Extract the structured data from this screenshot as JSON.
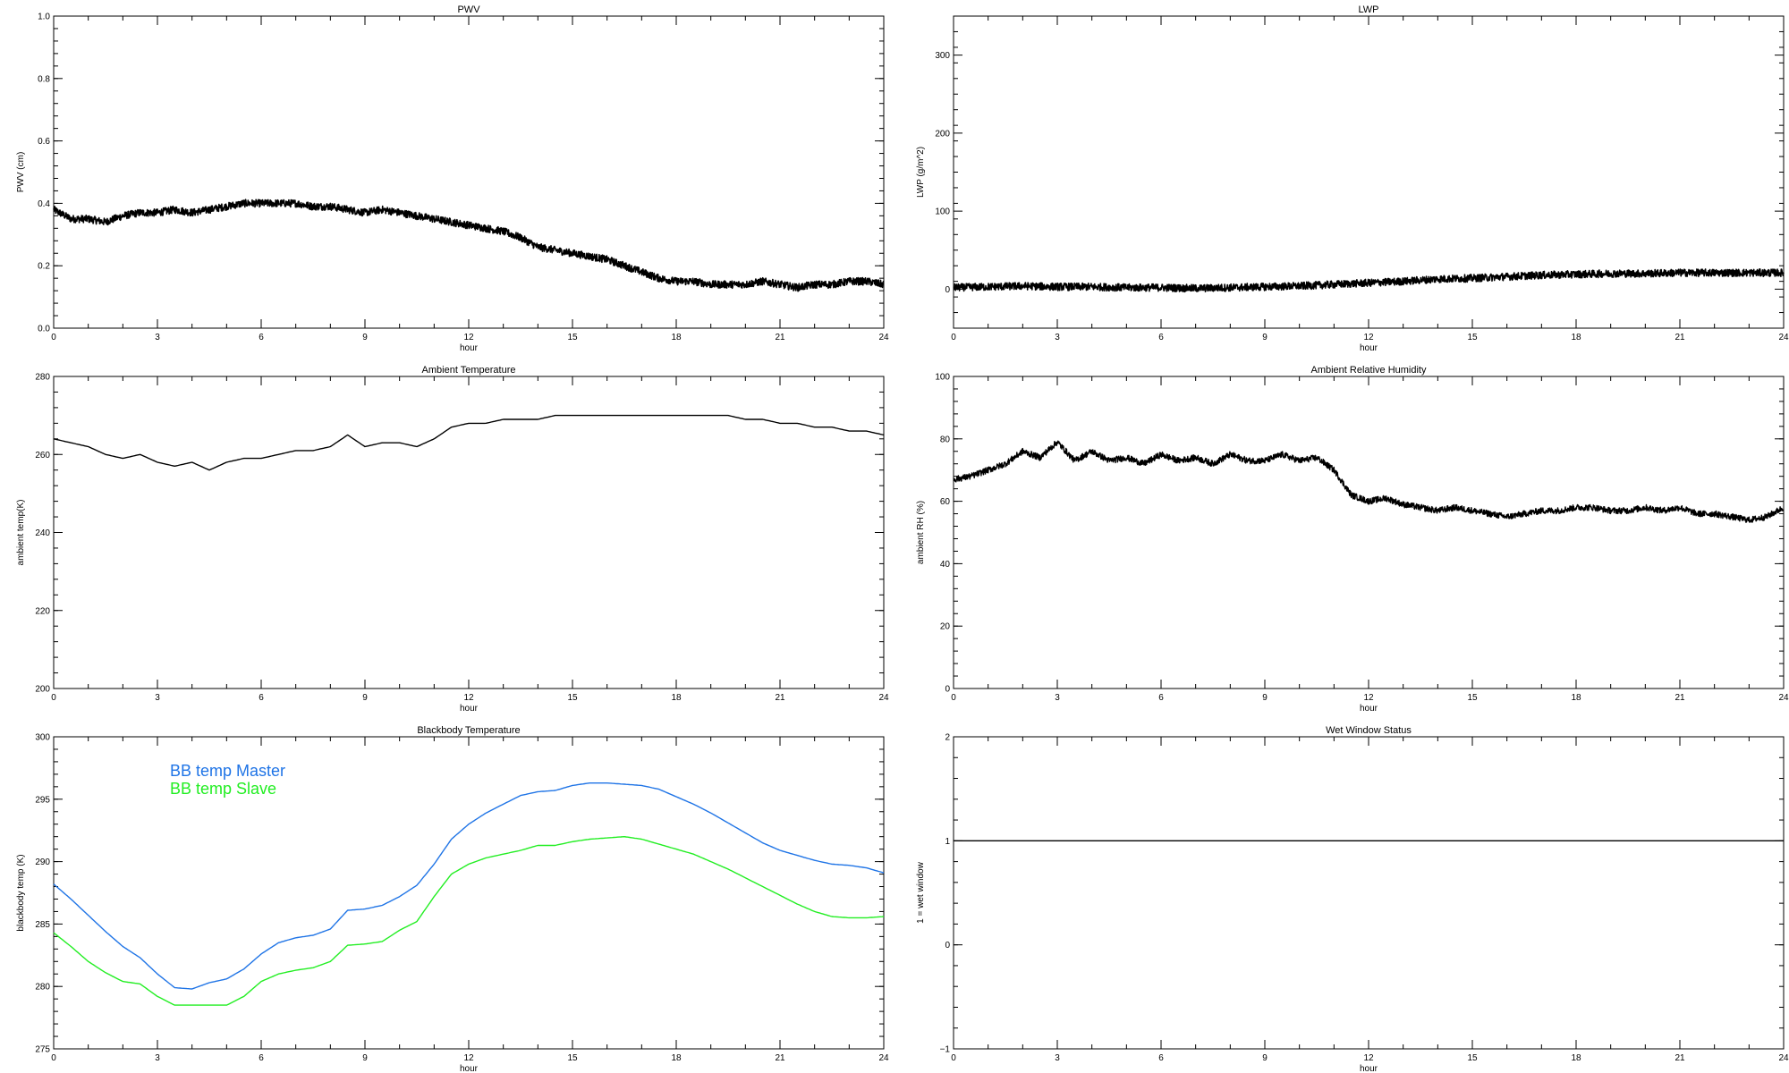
{
  "figure": {
    "background": "#ffffff",
    "axis_color": "#000000"
  },
  "chart_data": [
    {
      "id": "pwv",
      "type": "line",
      "title": "PWV",
      "xlabel": "hour",
      "ylabel": "PWV (cm)",
      "xlim": [
        0,
        24
      ],
      "ylim": [
        0.0,
        1.0
      ],
      "xticks": [
        "0",
        "3",
        "6",
        "9",
        "12",
        "15",
        "18",
        "21",
        "24"
      ],
      "yticks": [
        "0.0",
        "0.2",
        "0.4",
        "0.6",
        "0.8",
        "1.0"
      ],
      "grid": false,
      "series": [
        {
          "color": "#000000",
          "style": "noisy",
          "x": [
            0,
            0.5,
            1,
            1.5,
            2,
            2.5,
            3,
            3.5,
            4,
            4.5,
            5,
            5.5,
            6,
            6.5,
            7,
            7.5,
            8,
            8.5,
            9,
            9.5,
            10,
            10.5,
            11,
            11.5,
            12,
            12.5,
            13,
            13.5,
            14,
            14.5,
            15,
            15.5,
            16,
            16.5,
            17,
            17.5,
            18,
            18.5,
            19,
            19.5,
            20,
            20.5,
            21,
            21.5,
            22,
            22.5,
            23,
            23.5,
            24
          ],
          "y": [
            0.38,
            0.35,
            0.35,
            0.34,
            0.36,
            0.37,
            0.37,
            0.38,
            0.37,
            0.38,
            0.39,
            0.4,
            0.4,
            0.4,
            0.4,
            0.39,
            0.39,
            0.38,
            0.37,
            0.38,
            0.37,
            0.36,
            0.35,
            0.34,
            0.33,
            0.32,
            0.31,
            0.29,
            0.26,
            0.25,
            0.24,
            0.23,
            0.22,
            0.2,
            0.18,
            0.16,
            0.15,
            0.15,
            0.14,
            0.14,
            0.14,
            0.15,
            0.14,
            0.13,
            0.14,
            0.14,
            0.15,
            0.15,
            0.14
          ]
        }
      ]
    },
    {
      "id": "lwp",
      "type": "line",
      "title": "LWP",
      "xlabel": "hour",
      "ylabel": "LWP (g/m^2)",
      "xlim": [
        0,
        24
      ],
      "ylim": [
        -50,
        350
      ],
      "xticks": [
        "0",
        "3",
        "6",
        "9",
        "12",
        "15",
        "18",
        "21",
        "24"
      ],
      "yticks": [
        "0",
        "100",
        "200",
        "300"
      ],
      "grid": false,
      "series": [
        {
          "color": "#000000",
          "style": "noisy",
          "x": [
            0,
            1,
            2,
            3,
            4,
            5,
            6,
            7,
            8,
            9,
            10,
            11,
            12,
            13,
            14,
            15,
            16,
            17,
            18,
            19,
            20,
            21,
            22,
            23,
            24
          ],
          "y": [
            2,
            3,
            4,
            3,
            3,
            2,
            2,
            1,
            2,
            3,
            4,
            6,
            8,
            10,
            13,
            14,
            16,
            18,
            19,
            20,
            20,
            21,
            21,
            21,
            21
          ]
        }
      ]
    },
    {
      "id": "ambient-temp",
      "type": "line",
      "title": "Ambient Temperature",
      "xlabel": "hour",
      "ylabel": "ambient temp(K)",
      "xlim": [
        0,
        24
      ],
      "ylim": [
        200,
        280
      ],
      "xticks": [
        "0",
        "3",
        "6",
        "9",
        "12",
        "15",
        "18",
        "21",
        "24"
      ],
      "yticks": [
        "200",
        "220",
        "240",
        "260",
        "280"
      ],
      "grid": false,
      "series": [
        {
          "color": "#000000",
          "style": "smooth",
          "x": [
            0,
            0.5,
            1,
            1.5,
            2,
            2.5,
            3,
            3.5,
            4,
            4.5,
            5,
            5.5,
            6,
            6.5,
            7,
            7.5,
            8,
            8.5,
            9,
            9.5,
            10,
            10.5,
            11,
            11.5,
            12,
            12.5,
            13,
            13.5,
            14,
            14.5,
            15,
            15.5,
            16,
            16.5,
            17,
            17.5,
            18,
            18.5,
            19,
            19.5,
            20,
            20.5,
            21,
            21.5,
            22,
            22.5,
            23,
            23.5,
            24
          ],
          "y": [
            264,
            263,
            262,
            260,
            259,
            260,
            258,
            257,
            258,
            256,
            258,
            259,
            259,
            260,
            261,
            261,
            262,
            265,
            262,
            263,
            263,
            262,
            264,
            267,
            268,
            268,
            269,
            269,
            269,
            270,
            270,
            270,
            270,
            270,
            270,
            270,
            270,
            270,
            270,
            270,
            269,
            269,
            268,
            268,
            267,
            267,
            266,
            266,
            265
          ]
        }
      ]
    },
    {
      "id": "ambient-rh",
      "type": "line",
      "title": "Ambient Relative Humidity",
      "xlabel": "hour",
      "ylabel": "ambient RH (%)",
      "xlim": [
        0,
        24
      ],
      "ylim": [
        0,
        100
      ],
      "xticks": [
        "0",
        "3",
        "6",
        "9",
        "12",
        "15",
        "18",
        "21",
        "24"
      ],
      "yticks": [
        "0",
        "20",
        "40",
        "60",
        "80",
        "100"
      ],
      "grid": false,
      "series": [
        {
          "color": "#000000",
          "style": "noisy-small",
          "x": [
            0,
            0.5,
            1,
            1.5,
            2,
            2.5,
            3,
            3.5,
            4,
            4.5,
            5,
            5.5,
            6,
            6.5,
            7,
            7.5,
            8,
            8.5,
            9,
            9.5,
            10,
            10.5,
            11,
            11.5,
            12,
            12.5,
            13,
            13.5,
            14,
            14.5,
            15,
            15.5,
            16,
            16.5,
            17,
            17.5,
            18,
            18.5,
            19,
            19.5,
            20,
            20.5,
            21,
            21.5,
            22,
            22.5,
            23,
            23.5,
            24
          ],
          "y": [
            67,
            68,
            70,
            72,
            76,
            74,
            79,
            73,
            76,
            73,
            74,
            72,
            75,
            73,
            74,
            72,
            75,
            73,
            73,
            75,
            73,
            74,
            70,
            62,
            60,
            61,
            59,
            58,
            57,
            58,
            57,
            56,
            55,
            56,
            57,
            57,
            58,
            58,
            57,
            57,
            58,
            57,
            58,
            56,
            56,
            55,
            54,
            55,
            58
          ]
        }
      ]
    },
    {
      "id": "blackbody-temp",
      "type": "line",
      "title": "Blackbody Temperature",
      "xlabel": "hour",
      "ylabel": "blackbody temp (K)",
      "xlim": [
        0,
        24
      ],
      "ylim": [
        275,
        300
      ],
      "xticks": [
        "0",
        "3",
        "6",
        "9",
        "12",
        "15",
        "18",
        "21",
        "24"
      ],
      "yticks": [
        "275",
        "280",
        "285",
        "290",
        "295",
        "300"
      ],
      "grid": false,
      "legend": "top-left",
      "series": [
        {
          "name": "BB temp Master",
          "color": "#1f74e6",
          "style": "smooth",
          "x": [
            0,
            0.5,
            1,
            1.5,
            2,
            2.5,
            3,
            3.5,
            4,
            4.5,
            5,
            5.5,
            6,
            6.5,
            7,
            7.5,
            8,
            8.5,
            9,
            9.5,
            10,
            10.5,
            11,
            11.5,
            12,
            12.5,
            13,
            13.5,
            14,
            14.5,
            15,
            15.5,
            16,
            16.5,
            17,
            17.5,
            18,
            18.5,
            19,
            19.5,
            20,
            20.5,
            21,
            21.5,
            22,
            22.5,
            23,
            23.5,
            24
          ],
          "y": [
            288.2,
            287.0,
            285.7,
            284.4,
            283.2,
            282.3,
            281.0,
            279.9,
            279.8,
            280.3,
            280.6,
            281.4,
            282.6,
            283.5,
            283.9,
            284.1,
            284.6,
            286.1,
            286.2,
            286.5,
            287.2,
            288.1,
            289.8,
            291.8,
            293.0,
            293.9,
            294.6,
            295.3,
            295.6,
            295.7,
            296.1,
            296.3,
            296.3,
            296.2,
            296.1,
            295.8,
            295.2,
            294.6,
            293.9,
            293.1,
            292.3,
            291.5,
            290.9,
            290.5,
            290.1,
            289.8,
            289.7,
            289.5,
            289.1
          ]
        },
        {
          "name": "BB temp Slave",
          "color": "#22ee22",
          "style": "smooth",
          "x": [
            0,
            0.5,
            1,
            1.5,
            2,
            2.5,
            3,
            3.5,
            4,
            4.5,
            5,
            5.5,
            6,
            6.5,
            7,
            7.5,
            8,
            8.5,
            9,
            9.5,
            10,
            10.5,
            11,
            11.5,
            12,
            12.5,
            13,
            13.5,
            14,
            14.5,
            15,
            15.5,
            16,
            16.5,
            17,
            17.5,
            18,
            18.5,
            19,
            19.5,
            20,
            20.5,
            21,
            21.5,
            22,
            22.5,
            23,
            23.5,
            24
          ],
          "y": [
            284.3,
            283.2,
            282.0,
            281.1,
            280.4,
            280.2,
            279.2,
            278.5,
            278.5,
            278.5,
            278.5,
            279.2,
            280.4,
            281.0,
            281.3,
            281.5,
            282.0,
            283.3,
            283.4,
            283.6,
            284.5,
            285.2,
            287.2,
            289.0,
            289.8,
            290.3,
            290.6,
            290.9,
            291.3,
            291.3,
            291.6,
            291.8,
            291.9,
            292.0,
            291.8,
            291.4,
            291.0,
            290.6,
            290.0,
            289.4,
            288.7,
            288.0,
            287.3,
            286.6,
            286.0,
            285.6,
            285.5,
            285.5,
            285.6
          ]
        }
      ]
    },
    {
      "id": "wet-window",
      "type": "line",
      "title": "Wet Window Status",
      "xlabel": "hour",
      "ylabel": "1 = wet window",
      "xlim": [
        0,
        24
      ],
      "ylim": [
        -1,
        2
      ],
      "xticks": [
        "0",
        "3",
        "6",
        "9",
        "12",
        "15",
        "18",
        "21",
        "24"
      ],
      "yticks": [
        "−1",
        "0",
        "1",
        "2"
      ],
      "grid": false,
      "series": [
        {
          "color": "#000000",
          "style": "flat",
          "x": [
            0,
            24
          ],
          "y": [
            1,
            1
          ]
        }
      ]
    }
  ]
}
